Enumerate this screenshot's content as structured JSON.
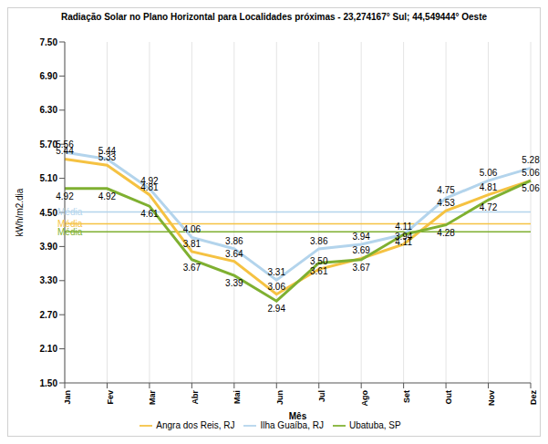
{
  "chart_data": {
    "type": "line",
    "title": "Radiação Solar no Plano Horizontal para Localidades próximas -  23,274167° Sul;  44,549444° Oeste",
    "x_label": "Mês",
    "y_label": "kWh/m2.dia",
    "categories": [
      "Jan",
      "Fev",
      "Mar",
      "Abr",
      "Mai",
      "Jun",
      "Jul",
      "Ago",
      "Set",
      "Out",
      "Nov",
      "Dez"
    ],
    "series": [
      {
        "name": "Ilha Guaíba, RJ",
        "color": "#b3d4ec",
        "values": [
          5.56,
          5.44,
          4.92,
          4.06,
          3.86,
          3.31,
          3.86,
          3.94,
          4.11,
          4.75,
          5.06,
          5.28
        ],
        "value_labels": [
          "5.56",
          "5.44",
          "4.92",
          "4.06",
          "3.86",
          "3.31",
          "3.86",
          "3.94",
          "4.11",
          "4.75",
          "5.06",
          "5.28"
        ],
        "average": 4.51
      },
      {
        "name": "Angra dos Reis, RJ",
        "color": "#f5c242",
        "values": [
          5.44,
          5.33,
          4.81,
          3.81,
          3.64,
          3.06,
          3.5,
          3.69,
          3.94,
          4.53,
          4.81,
          5.06
        ],
        "value_labels": [
          "5.44",
          "5.33",
          "4.81",
          "3.81",
          "3.64",
          "3.06",
          "3.50",
          "3.69",
          "3.94",
          "4.53",
          "4.81",
          "5.06"
        ],
        "average": 4.3
      },
      {
        "name": "Ubatuba, SP",
        "color": "#7fb031",
        "values": [
          4.92,
          4.92,
          4.61,
          3.67,
          3.39,
          2.94,
          3.61,
          3.67,
          4.11,
          4.28,
          4.72,
          5.06
        ],
        "value_labels": [
          "4.92",
          "4.92",
          "4.61",
          "3.67",
          "3.39",
          "2.94",
          "3.61",
          "3.67",
          "4.11",
          "4.28",
          "4.72",
          "5.06"
        ],
        "average": 4.16
      }
    ],
    "average_label": "Média",
    "ylim": [
      1.5,
      7.5
    ],
    "yticks": [
      {
        "value": 1.5,
        "label": "1.50"
      },
      {
        "value": 2.1,
        "label": "2.10"
      },
      {
        "value": 2.7,
        "label": "2.70"
      },
      {
        "value": 3.3,
        "label": "3.30"
      },
      {
        "value": 3.9,
        "label": "3.90"
      },
      {
        "value": 4.5,
        "label": "4.50"
      },
      {
        "value": 5.1,
        "label": "5.10"
      },
      {
        "value": 5.7,
        "label": "5.70"
      },
      {
        "value": 6.3,
        "label": "6.30"
      },
      {
        "value": 6.9,
        "label": "6.90"
      },
      {
        "value": 7.5,
        "label": "7.50"
      }
    ],
    "grid": true,
    "legend": "bottom",
    "data_labels": true
  }
}
